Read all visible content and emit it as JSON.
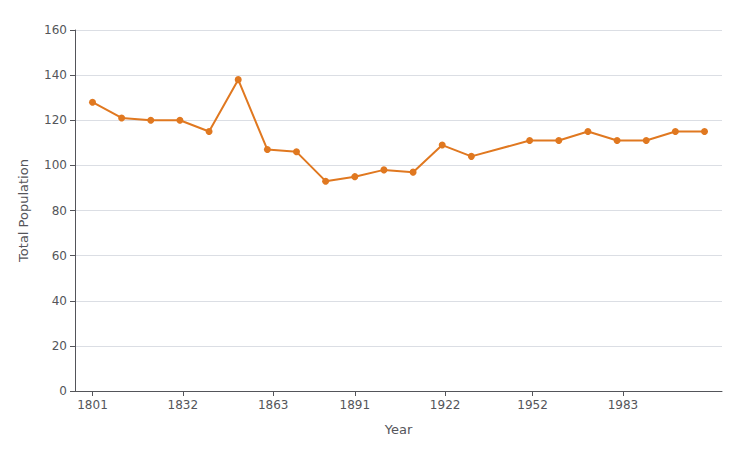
{
  "chart_data": {
    "type": "line",
    "x": [
      1801,
      1811,
      1821,
      1831,
      1841,
      1851,
      1861,
      1871,
      1881,
      1891,
      1901,
      1911,
      1921,
      1931,
      1951,
      1961,
      1971,
      1981,
      1991,
      2001,
      2011
    ],
    "values": [
      128,
      121,
      120,
      120,
      115,
      138,
      107,
      106,
      93,
      95,
      98,
      97,
      109,
      104,
      111,
      111,
      115,
      111,
      111,
      115,
      115
    ],
    "color": "#E07820",
    "marker": "circle",
    "xlabel": "Year",
    "ylabel": "Total Population",
    "xlim": [
      1795,
      2017
    ],
    "xticks": [
      1801,
      1832,
      1863,
      1891,
      1922,
      1952,
      1983
    ],
    "ylim": [
      0,
      160
    ],
    "yticks": [
      0,
      20,
      40,
      60,
      80,
      100,
      120,
      140,
      160
    ],
    "grid": true
  }
}
